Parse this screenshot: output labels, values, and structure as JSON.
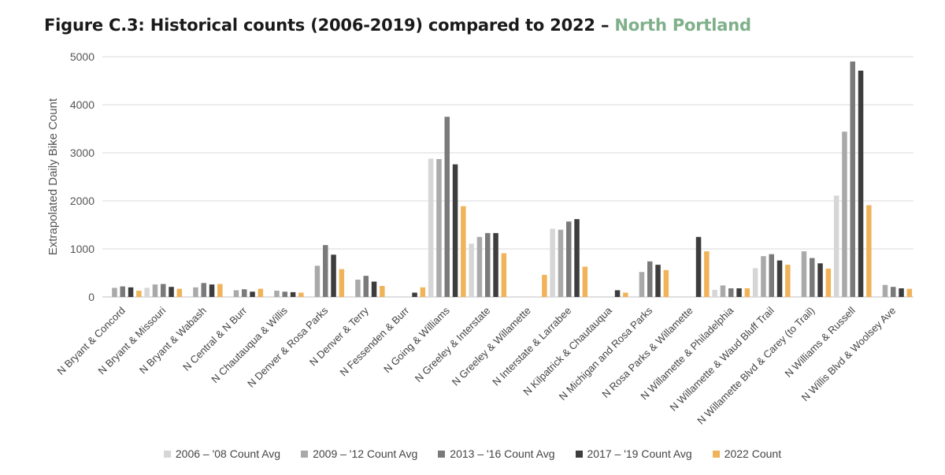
{
  "title": {
    "main": "Figure C.3: Historical counts (2006-2019) compared to 2022  – ",
    "accent": "North Portland",
    "accent_color": "#7fb08a"
  },
  "chart_data": {
    "type": "bar",
    "ylabel": "Extrapolated Daily Bike Count",
    "xlabel": "",
    "ylim": [
      0,
      5000
    ],
    "yticks": [
      0,
      1000,
      2000,
      3000,
      4000,
      5000
    ],
    "grid": true,
    "legend_position": "bottom",
    "categories": [
      "N Bryant & Concord",
      "N Bryant & Missouri",
      "N Bryant & Wabash",
      "N Central & N Burr",
      "N Chautauqua & Willis",
      "N Denver & Rosa Parks",
      "N Denver & Terry",
      "N Fessenden & Burr",
      "N Going & Williams",
      "N Greeley & Interstate",
      "N Greeley & Willamette",
      "N Interstate & Larrabee",
      "N Kilpatrick & Chautauqua",
      "N Michigan and Rosa Parks",
      "N Rosa Parks & Willamette",
      "N Willamette & Philadelphia",
      "N Willamette & Waud Bluff Trail",
      "N Willamette Blvd & Carey (to Trail)",
      "N Williams & Russell",
      "N Willis Blvd & Woolsey Ave"
    ],
    "series": [
      {
        "name": "2006 – '08 Count Avg",
        "color": "#d6d6d6",
        "values": [
          0,
          190,
          0,
          0,
          0,
          0,
          0,
          0,
          2880,
          1110,
          0,
          1420,
          0,
          0,
          0,
          150,
          600,
          0,
          2110,
          0
        ]
      },
      {
        "name": "2009 – '12 Count Avg",
        "color": "#a9a9a9",
        "values": [
          190,
          260,
          200,
          140,
          130,
          650,
          360,
          0,
          2870,
          1250,
          0,
          1400,
          0,
          520,
          0,
          240,
          850,
          950,
          3440,
          250
        ]
      },
      {
        "name": "2013 – '16 Count Avg",
        "color": "#7a7a7a",
        "values": [
          220,
          270,
          290,
          160,
          110,
          1080,
          440,
          0,
          3750,
          1330,
          0,
          1570,
          0,
          740,
          0,
          180,
          890,
          810,
          4900,
          210
        ]
      },
      {
        "name": "2017 – '19 Count Avg",
        "color": "#3d3d3d",
        "values": [
          200,
          210,
          260,
          110,
          100,
          880,
          320,
          90,
          2760,
          1330,
          0,
          1620,
          140,
          670,
          1250,
          180,
          760,
          700,
          4710,
          180
        ]
      },
      {
        "name": "2022 Count",
        "color": "#f0b35a",
        "values": [
          130,
          170,
          270,
          170,
          90,
          580,
          230,
          200,
          1890,
          910,
          460,
          630,
          90,
          560,
          950,
          180,
          670,
          590,
          1910,
          170
        ]
      }
    ]
  }
}
